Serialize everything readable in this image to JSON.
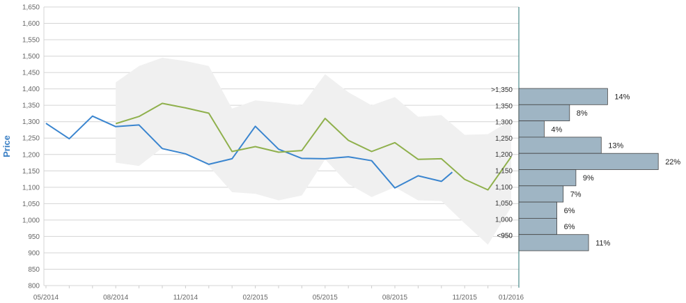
{
  "chart_data": {
    "type": "line",
    "ylabel": "Price",
    "ylim": [
      800,
      1650
    ],
    "y_ticks": [
      "1,650",
      "1,600",
      "1,550",
      "1,500",
      "1,450",
      "1,400",
      "1,350",
      "1,300",
      "1,250",
      "1,200",
      "1,150",
      "1,100",
      "1,050",
      "1,000",
      "950",
      "900",
      "850",
      "800"
    ],
    "x_ticks": [
      "05/2014",
      "08/2014",
      "11/2014",
      "02/2015",
      "05/2015",
      "08/2015",
      "11/2015",
      "01/2016"
    ],
    "grid": true,
    "colors": {
      "blue_series": "#3a85cf",
      "green_series": "#8fb04c",
      "band": "#f0f0f0",
      "dist_bar": "#9fb5c4",
      "divider": "#4a8a8a"
    },
    "series": [
      {
        "x": [
          "2014-05",
          "2014-06",
          "2014-07",
          "2014-08",
          "2014-09",
          "2014-10",
          "2014-11",
          "2014-12",
          "2015-01",
          "2015-02",
          "2015-03",
          "2015-04",
          "2015-05",
          "2015-06",
          "2015-07",
          "2015-08",
          "2015-09",
          "2015-10",
          "2015-10-15"
        ],
        "values": [
          1295,
          1248,
          1317,
          1285,
          1290,
          1218,
          1202,
          1170,
          1187,
          1286,
          1216,
          1188,
          1187,
          1193,
          1181,
          1098,
          1135,
          1118,
          1146
        ]
      },
      {
        "x": [
          "2014-08",
          "2014-09",
          "2014-10",
          "2014-11",
          "2014-12",
          "2015-01",
          "2015-02",
          "2015-03",
          "2015-04",
          "2015-05",
          "2015-06",
          "2015-07",
          "2015-08",
          "2015-09",
          "2015-10",
          "2015-11",
          "2015-12",
          "2016-01"
        ],
        "values": [
          1294,
          1316,
          1356,
          1342,
          1326,
          1209,
          1224,
          1207,
          1212,
          1310,
          1243,
          1209,
          1236,
          1185,
          1187,
          1124,
          1092,
          1193
        ]
      }
    ],
    "band": {
      "x": [
        "2014-08",
        "2014-09",
        "2014-10",
        "2014-11",
        "2014-12",
        "2015-01",
        "2015-02",
        "2015-03",
        "2015-04",
        "2015-05",
        "2015-06",
        "2015-07",
        "2015-08",
        "2015-09",
        "2015-10",
        "2015-11",
        "2015-12",
        "2016-01"
      ],
      "upper": [
        1420,
        1470,
        1495,
        1485,
        1470,
        1340,
        1365,
        1358,
        1350,
        1445,
        1390,
        1350,
        1375,
        1315,
        1320,
        1260,
        1262,
        1305
      ],
      "lower": [
        1175,
        1165,
        1220,
        1205,
        1165,
        1085,
        1080,
        1060,
        1075,
        1185,
        1110,
        1070,
        1100,
        1060,
        1058,
        990,
        925,
        1040
      ]
    },
    "distribution": [
      {
        "label": ">1,350",
        "percent": "14%",
        "value": 14
      },
      {
        "label": "1,350",
        "percent": "8%",
        "value": 8
      },
      {
        "label": "1,300",
        "percent": "4%",
        "value": 4
      },
      {
        "label": "1,250",
        "percent": "13%",
        "value": 13
      },
      {
        "label": "1,200",
        "percent": "22%",
        "value": 22
      },
      {
        "label": "1,150",
        "percent": "9%",
        "value": 9
      },
      {
        "label": "1,100",
        "percent": "7%",
        "value": 7
      },
      {
        "label": "1,050",
        "percent": "6%",
        "value": 6
      },
      {
        "label": "1,000",
        "percent": "6%",
        "value": 6
      },
      {
        "label": "<950",
        "percent": "11%",
        "value": 11
      }
    ],
    "distribution_extra_label": "950"
  }
}
